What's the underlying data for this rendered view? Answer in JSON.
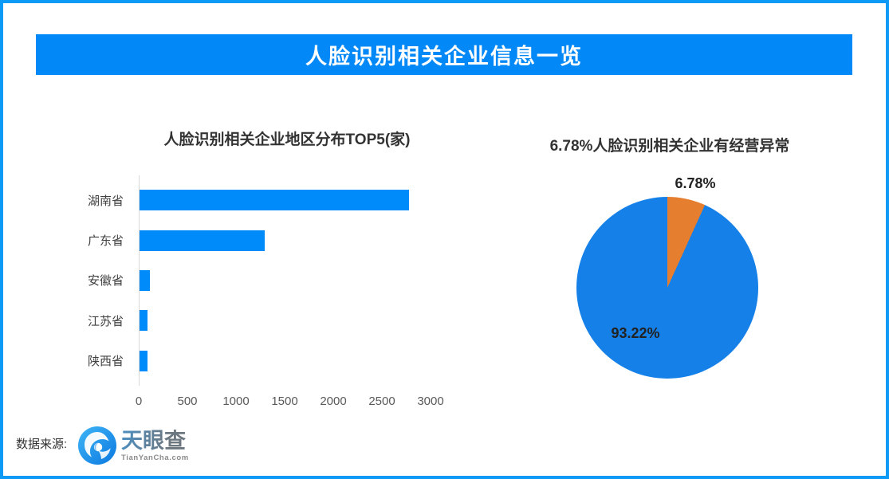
{
  "page": {
    "background": "#ffffff",
    "border_color": "#0d9af7"
  },
  "header": {
    "title": "人脸识别相关企业信息一览",
    "bg_color": "#0388f7",
    "text_color": "#ffffff"
  },
  "chart_data": [
    {
      "type": "bar",
      "orientation": "horizontal",
      "title": "人脸识别相关企业地区分布TOP5(家)",
      "categories": [
        "湖南省",
        "广东省",
        "安徽省",
        "江苏省",
        "陕西省"
      ],
      "values": [
        2780,
        1290,
        110,
        85,
        80
      ],
      "xlabel": "",
      "ylabel": "",
      "xlim": [
        0,
        3000
      ],
      "x_ticks": [
        0,
        500,
        1000,
        1500,
        2000,
        2500,
        3000
      ],
      "grid": false,
      "legend": "none",
      "bar_color": "#008bfb",
      "axis_line_color": "#d9d9d9",
      "tick_label_color": "#595959",
      "category_label_color": "#404040"
    },
    {
      "type": "pie",
      "title": "6.78%人脸识别相关企业有经营异常",
      "slices": [
        {
          "label": "6.78%",
          "value": 6.78,
          "color": "#e57e2f"
        },
        {
          "label": "93.22%",
          "value": 93.22,
          "color": "#1580e8"
        }
      ],
      "start_angle": "12-oclock",
      "direction": "clockwise",
      "label_color": "#222222",
      "legend": "none"
    }
  ],
  "footer": {
    "source_label": "数据来源:",
    "logo": {
      "icon": "tianyancha-eye-icon",
      "brand_name": "天眼查",
      "brand_url_text": "TianYanCha.com",
      "brand_color": "#1b8df2"
    }
  }
}
